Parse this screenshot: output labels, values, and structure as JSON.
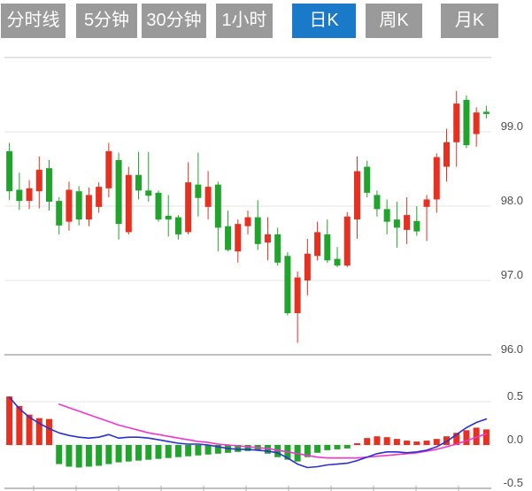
{
  "tabs": {
    "items": [
      {
        "label": "分时线",
        "active": false
      },
      {
        "label": "5分钟",
        "active": false
      },
      {
        "label": "30分钟",
        "active": false
      },
      {
        "label": "1小时",
        "active": false
      },
      {
        "label": "日K",
        "active": true
      },
      {
        "label": "周K",
        "active": false
      },
      {
        "label": "月K",
        "active": false
      }
    ]
  },
  "colors": {
    "up": "#e7301f",
    "down": "#21a42c",
    "dif_line": "#2b30d0",
    "dea_line": "#f136d0",
    "grid_light": "#e5e5e5",
    "grid_top": "#c9c9c9",
    "axis_dark": "#ababab",
    "label_text": "#4f4f4f",
    "tab_bg": "#9a9a9a",
    "tab_active_bg": "#1b79c9",
    "tab_text": "#ffffff"
  },
  "chart_data": [
    {
      "type": "candlestick",
      "title": "日K (daily) candlestick price panel, red = up / green = down",
      "y_axis": {
        "labels": [
          "99.0",
          "98.0",
          "97.0",
          "96.0"
        ],
        "values": [
          99.0,
          98.0,
          97.0,
          96.0
        ],
        "range": [
          95.9,
          100.0
        ]
      },
      "grid": true,
      "candles": [
        {
          "o": 98.74,
          "h": 98.85,
          "l": 98.08,
          "c": 98.2
        },
        {
          "o": 98.22,
          "h": 98.45,
          "l": 97.95,
          "c": 98.07
        },
        {
          "o": 98.07,
          "h": 98.35,
          "l": 97.96,
          "c": 98.24
        },
        {
          "o": 98.2,
          "h": 98.67,
          "l": 97.97,
          "c": 98.49
        },
        {
          "o": 98.51,
          "h": 98.62,
          "l": 97.94,
          "c": 98.06
        },
        {
          "o": 98.07,
          "h": 98.12,
          "l": 97.62,
          "c": 97.74
        },
        {
          "o": 97.79,
          "h": 98.33,
          "l": 97.67,
          "c": 98.22
        },
        {
          "o": 98.2,
          "h": 98.27,
          "l": 97.74,
          "c": 97.82
        },
        {
          "o": 97.82,
          "h": 98.25,
          "l": 97.73,
          "c": 98.15
        },
        {
          "o": 97.99,
          "h": 98.32,
          "l": 97.91,
          "c": 98.26
        },
        {
          "o": 98.24,
          "h": 98.85,
          "l": 98.12,
          "c": 98.74
        },
        {
          "o": 98.62,
          "h": 98.72,
          "l": 97.55,
          "c": 97.76
        },
        {
          "o": 97.65,
          "h": 98.53,
          "l": 97.62,
          "c": 98.42
        },
        {
          "o": 98.42,
          "h": 98.73,
          "l": 98.09,
          "c": 98.21
        },
        {
          "o": 98.21,
          "h": 98.73,
          "l": 98.06,
          "c": 98.14
        },
        {
          "o": 98.18,
          "h": 98.21,
          "l": 97.79,
          "c": 97.82
        },
        {
          "o": 97.87,
          "h": 98.15,
          "l": 97.59,
          "c": 97.82
        },
        {
          "o": 97.85,
          "h": 97.88,
          "l": 97.55,
          "c": 97.62
        },
        {
          "o": 97.65,
          "h": 98.59,
          "l": 97.62,
          "c": 98.32
        },
        {
          "o": 98.29,
          "h": 98.72,
          "l": 97.86,
          "c": 98.11
        },
        {
          "o": 97.99,
          "h": 98.47,
          "l": 97.82,
          "c": 98.26
        },
        {
          "o": 98.29,
          "h": 98.33,
          "l": 97.39,
          "c": 97.71
        },
        {
          "o": 97.73,
          "h": 97.94,
          "l": 97.39,
          "c": 97.41
        },
        {
          "o": 97.39,
          "h": 97.82,
          "l": 97.24,
          "c": 97.76
        },
        {
          "o": 97.73,
          "h": 97.94,
          "l": 97.62,
          "c": 97.85
        },
        {
          "o": 97.85,
          "h": 98.08,
          "l": 97.41,
          "c": 97.49
        },
        {
          "o": 97.51,
          "h": 97.85,
          "l": 97.27,
          "c": 97.62
        },
        {
          "o": 97.62,
          "h": 97.71,
          "l": 97.2,
          "c": 97.24
        },
        {
          "o": 97.33,
          "h": 97.38,
          "l": 96.53,
          "c": 96.56
        },
        {
          "o": 96.56,
          "h": 97.12,
          "l": 96.16,
          "c": 97.04
        },
        {
          "o": 97.0,
          "h": 97.56,
          "l": 96.8,
          "c": 97.36
        },
        {
          "o": 97.33,
          "h": 97.79,
          "l": 97.27,
          "c": 97.65
        },
        {
          "o": 97.62,
          "h": 97.82,
          "l": 97.24,
          "c": 97.27
        },
        {
          "o": 97.29,
          "h": 97.45,
          "l": 97.18,
          "c": 97.2
        },
        {
          "o": 97.2,
          "h": 97.92,
          "l": 97.18,
          "c": 97.86
        },
        {
          "o": 97.82,
          "h": 98.67,
          "l": 97.56,
          "c": 98.47
        },
        {
          "o": 98.53,
          "h": 98.61,
          "l": 98.12,
          "c": 98.18
        },
        {
          "o": 98.15,
          "h": 98.21,
          "l": 97.86,
          "c": 97.96
        },
        {
          "o": 97.96,
          "h": 98.09,
          "l": 97.62,
          "c": 97.79
        },
        {
          "o": 97.82,
          "h": 98.06,
          "l": 97.44,
          "c": 97.71
        },
        {
          "o": 97.68,
          "h": 98.12,
          "l": 97.49,
          "c": 97.88
        },
        {
          "o": 97.8,
          "h": 98.0,
          "l": 97.6,
          "c": 97.66
        },
        {
          "o": 97.99,
          "h": 98.15,
          "l": 97.53,
          "c": 98.09
        },
        {
          "o": 98.09,
          "h": 98.71,
          "l": 97.91,
          "c": 98.66
        },
        {
          "o": 98.53,
          "h": 99.04,
          "l": 98.33,
          "c": 98.86
        },
        {
          "o": 98.86,
          "h": 99.55,
          "l": 98.53,
          "c": 99.38
        },
        {
          "o": 99.43,
          "h": 99.49,
          "l": 98.78,
          "c": 98.82
        },
        {
          "o": 98.97,
          "h": 99.33,
          "l": 98.8,
          "c": 99.26
        },
        {
          "o": 99.27,
          "h": 99.35,
          "l": 99.18,
          "c": 99.24
        }
      ]
    },
    {
      "type": "macd",
      "title": "MACD indicator panel: histogram (red positive / green negative), DIF blue line, DEA magenta line",
      "y_axis": {
        "labels": [
          "0.5",
          "0.0",
          "-0.5"
        ],
        "values": [
          0.5,
          0.0,
          -0.5
        ],
        "range": [
          -0.5,
          0.5
        ]
      },
      "grid": true,
      "histogram": [
        0.56,
        0.45,
        0.35,
        0.31,
        0.3,
        -0.22,
        -0.25,
        -0.26,
        -0.25,
        -0.24,
        -0.22,
        -0.2,
        -0.19,
        -0.18,
        -0.17,
        -0.16,
        -0.15,
        -0.14,
        -0.13,
        -0.12,
        -0.11,
        -0.1,
        -0.09,
        -0.08,
        -0.07,
        -0.06,
        -0.1,
        -0.14,
        -0.17,
        -0.19,
        -0.14,
        -0.09,
        -0.06,
        -0.05,
        -0.04,
        0.02,
        0.08,
        0.1,
        0.09,
        0.07,
        0.05,
        0.04,
        0.05,
        0.07,
        0.1,
        0.14,
        0.17,
        0.2,
        0.18
      ],
      "dif": [
        0.55,
        0.42,
        0.32,
        0.25,
        0.19,
        0.14,
        0.11,
        0.09,
        0.08,
        0.09,
        0.12,
        0.08,
        0.09,
        0.09,
        0.08,
        0.06,
        0.04,
        0.02,
        0.01,
        0.01,
        0.0,
        -0.02,
        -0.04,
        -0.05,
        -0.05,
        -0.06,
        -0.07,
        -0.09,
        -0.15,
        -0.22,
        -0.26,
        -0.25,
        -0.23,
        -0.22,
        -0.21,
        -0.18,
        -0.14,
        -0.1,
        -0.08,
        -0.08,
        -0.09,
        -0.08,
        -0.06,
        -0.02,
        0.04,
        0.12,
        0.2,
        0.26,
        0.3
      ],
      "dea": [
        null,
        null,
        null,
        null,
        null,
        0.47,
        0.43,
        0.39,
        0.35,
        0.31,
        0.27,
        0.23,
        0.2,
        0.17,
        0.14,
        0.12,
        0.1,
        0.08,
        0.06,
        0.04,
        0.03,
        0.01,
        0.0,
        -0.01,
        -0.02,
        -0.03,
        -0.04,
        -0.06,
        -0.08,
        -0.1,
        -0.12,
        -0.14,
        -0.15,
        -0.15,
        -0.15,
        -0.15,
        -0.14,
        -0.13,
        -0.12,
        -0.11,
        -0.1,
        -0.09,
        -0.07,
        -0.05,
        -0.02,
        0.01,
        0.05,
        0.09,
        0.13
      ]
    }
  ]
}
